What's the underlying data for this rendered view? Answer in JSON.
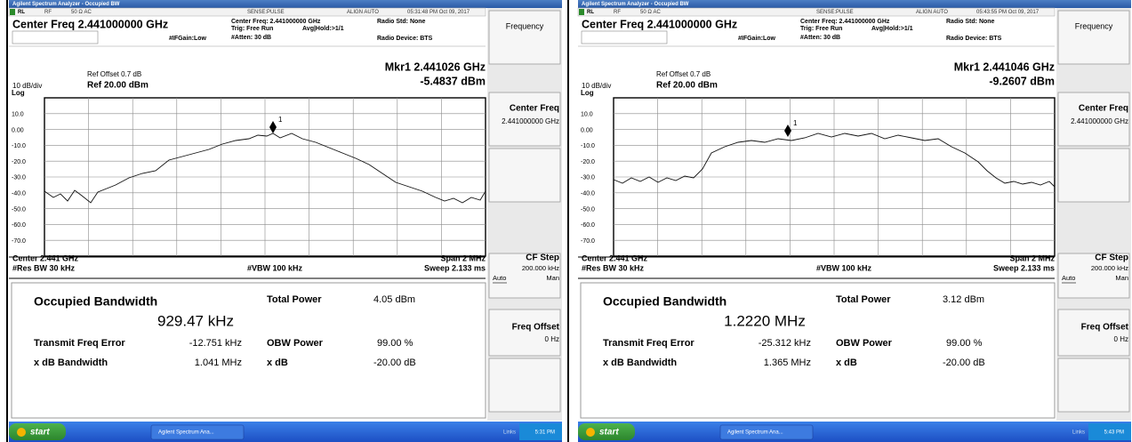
{
  "screens": [
    {
      "title_bar": "Agilent Spectrum Analyzer - Occupied BW",
      "status": {
        "rl": "RL",
        "rf": "RF",
        "impedance": "50 Ω  AC",
        "sense": "SENSE:PULSE",
        "align": "ALIGN AUTO",
        "time": "05:31:48 PM Oct 09, 2017"
      },
      "header": {
        "center_freq": "Center Freq 2.441000000 GHz",
        "center_freq_small": "Center Freq: 2.441000000 GHz",
        "trig": "Trig: Free Run",
        "avg": "Avg|Hold:>1/1",
        "ifgain": "#IFGain:Low",
        "atten": "#Atten: 30 dB",
        "radio_std": "Radio Std: None",
        "radio_device": "Radio Device: BTS"
      },
      "plot": {
        "ref_offset": "Ref Offset 0.7 dB",
        "scale": "10 dB/div",
        "ref": "Ref 20.00 dBm",
        "log": "Log",
        "marker_freq": "Mkr1  2.441026 GHz",
        "marker_level": "-5.4837 dBm",
        "marker_id": "1",
        "y_labels": [
          "10.0",
          "0.00",
          "-10.0",
          "-20.0",
          "-30.0",
          "-40.0",
          "-50.0",
          "-60.0",
          "-70.0"
        ],
        "center": "Center  2.441 GHz",
        "res_bw": "#Res BW  30 kHz",
        "vbw": "#VBW  100 kHz",
        "span": "Span 2 MHz",
        "sweep": "Sweep  2.133 ms"
      },
      "results": {
        "obw_label": "Occupied Bandwidth",
        "obw_value": "929.47 kHz",
        "total_power_label": "Total Power",
        "total_power": "4.05 dBm",
        "tfe_label": "Transmit Freq Error",
        "tfe": "-12.751 kHz",
        "obw_power_label": "OBW Power",
        "obw_power": "99.00 %",
        "xdb_bw_label": "x dB Bandwidth",
        "xdb_bw": "1.041 MHz",
        "xdb_label": "x dB",
        "xdb": "-20.00 dB"
      },
      "softkeys": {
        "menu": "Frequency",
        "center_freq": "Center Freq",
        "center_freq_value": "2.441000000 GHz",
        "cf_step": "CF Step",
        "cf_step_value": "200.000 kHz",
        "auto": "Auto",
        "man": "Man",
        "freq_offset": "Freq Offset",
        "freq_offset_value": "0 Hz"
      },
      "taskbar": {
        "start": "start",
        "task": "Agilent Spectrum Ana...",
        "links": "Links",
        "clock": "5:31 PM"
      }
    },
    {
      "title_bar": "Agilent Spectrum Analyzer - Occupied BW",
      "status": {
        "rl": "RL",
        "rf": "RF",
        "impedance": "50 Ω  AC",
        "sense": "SENSE:PULSE",
        "align": "ALIGN AUTO",
        "time": "05:43:55 PM Oct 09, 2017"
      },
      "header": {
        "center_freq": "Center Freq 2.441000000 GHz",
        "center_freq_small": "Center Freq: 2.441000000 GHz",
        "trig": "Trig: Free Run",
        "avg": "Avg|Hold:>1/1",
        "ifgain": "#IFGain:Low",
        "atten": "#Atten: 30 dB",
        "radio_std": "Radio Std: None",
        "radio_device": "Radio Device: BTS"
      },
      "plot": {
        "ref_offset": "Ref Offset 0.7 dB",
        "scale": "10 dB/div",
        "ref": "Ref 20.00 dBm",
        "log": "Log",
        "marker_freq": "Mkr1  2.441046 GHz",
        "marker_level": "-9.2607 dBm",
        "marker_id": "1",
        "y_labels": [
          "10.0",
          "0.00",
          "-10.0",
          "-20.0",
          "-30.0",
          "-40.0",
          "-50.0",
          "-60.0",
          "-70.0"
        ],
        "center": "Center  2.441 GHz",
        "res_bw": "#Res BW  30 kHz",
        "vbw": "#VBW  100 kHz",
        "span": "Span 2 MHz",
        "sweep": "Sweep  2.133 ms"
      },
      "results": {
        "obw_label": "Occupied Bandwidth",
        "obw_value": "1.2220 MHz",
        "total_power_label": "Total Power",
        "total_power": "3.12 dBm",
        "tfe_label": "Transmit Freq Error",
        "tfe": "-25.312 kHz",
        "obw_power_label": "OBW Power",
        "obw_power": "99.00 %",
        "xdb_bw_label": "x dB Bandwidth",
        "xdb_bw": "1.365 MHz",
        "xdb_label": "x dB",
        "xdb": "-20.00 dB"
      },
      "softkeys": {
        "menu": "Frequency",
        "center_freq": "Center Freq",
        "center_freq_value": "2.441000000 GHz",
        "cf_step": "CF Step",
        "cf_step_value": "200.000 kHz",
        "auto": "Auto",
        "man": "Man",
        "freq_offset": "Freq Offset",
        "freq_offset_value": "0 Hz"
      },
      "taskbar": {
        "start": "start",
        "task": "Agilent Spectrum Ana...",
        "links": "Links",
        "clock": "5:43 PM"
      }
    }
  ]
}
